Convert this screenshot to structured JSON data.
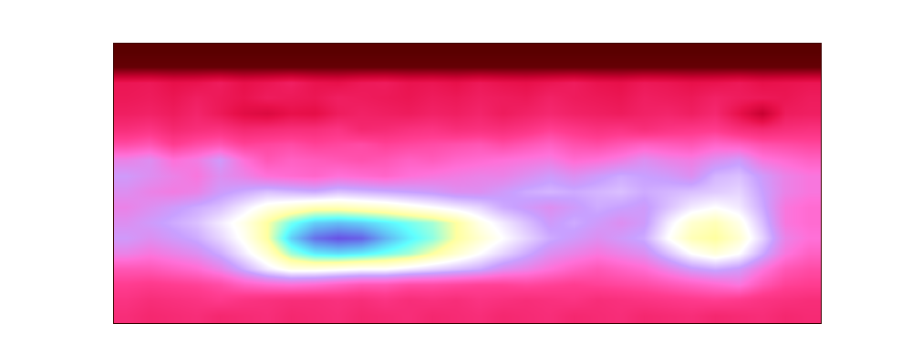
{
  "chart_data": {
    "type": "heatmap",
    "tick_labels": false,
    "zlim": [
      0,
      100
    ],
    "z": [
      [
        0,
        0,
        0,
        0,
        0,
        0,
        0,
        0,
        0,
        0,
        0,
        0,
        0,
        0,
        0,
        0,
        0,
        0,
        0,
        0,
        0,
        0,
        0,
        0,
        0,
        0,
        0,
        0,
        0,
        0
      ],
      [
        2,
        2,
        2,
        2,
        2,
        2,
        2,
        2,
        2,
        2,
        2,
        2,
        2,
        2,
        2,
        2,
        2,
        2,
        2,
        2,
        2,
        2,
        2,
        2,
        2,
        2,
        2,
        2,
        2,
        2
      ],
      [
        32,
        33,
        30,
        31,
        34,
        30,
        32,
        35,
        31,
        30,
        33,
        34,
        31,
        32,
        30,
        33,
        31,
        30,
        32,
        34,
        31,
        30,
        33,
        32,
        30,
        31,
        33,
        30,
        31,
        32
      ],
      [
        33,
        34,
        32,
        35,
        33,
        31,
        34,
        33,
        32,
        35,
        34,
        33,
        32,
        34,
        33,
        35,
        34,
        33,
        36,
        34,
        33,
        32,
        35,
        34,
        33,
        36,
        34,
        33,
        32,
        34
      ],
      [
        35,
        36,
        34,
        37,
        33,
        28,
        26,
        30,
        29,
        34,
        36,
        35,
        34,
        36,
        35,
        37,
        34,
        36,
        38,
        36,
        35,
        34,
        36,
        37,
        35,
        38,
        30,
        20,
        34,
        35
      ],
      [
        40,
        42,
        38,
        40,
        41,
        38,
        39,
        40,
        40,
        42,
        38,
        39,
        41,
        42,
        40,
        41,
        40,
        42,
        45,
        43,
        41,
        42,
        40,
        42,
        43,
        44,
        40,
        38,
        40,
        41
      ],
      [
        48,
        50,
        45,
        48,
        50,
        46,
        47,
        48,
        46,
        47,
        48,
        46,
        47,
        48,
        49,
        50,
        48,
        50,
        52,
        49,
        48,
        50,
        52,
        51,
        50,
        53,
        52,
        49,
        48,
        47
      ],
      [
        58,
        60,
        55,
        57,
        62,
        55,
        50,
        52,
        51,
        50,
        49,
        50,
        52,
        51,
        53,
        54,
        55,
        56,
        57,
        54,
        55,
        57,
        60,
        58,
        57,
        60,
        62,
        56,
        54,
        52
      ],
      [
        62,
        60,
        58,
        56,
        60,
        58,
        55,
        54,
        53,
        55,
        54,
        53,
        55,
        56,
        57,
        58,
        58,
        60,
        62,
        60,
        62,
        64,
        63,
        62,
        60,
        65,
        66,
        62,
        58,
        56
      ],
      [
        60,
        58,
        57,
        58,
        62,
        64,
        66,
        65,
        64,
        66,
        65,
        64,
        63,
        62,
        60,
        60,
        62,
        64,
        65,
        64,
        65,
        66,
        64,
        65,
        66,
        67,
        68,
        63,
        58,
        56
      ],
      [
        58,
        60,
        62,
        64,
        66,
        70,
        74,
        76,
        78,
        78,
        77,
        76,
        74,
        72,
        70,
        68,
        64,
        62,
        60,
        62,
        64,
        63,
        62,
        66,
        70,
        72,
        70,
        64,
        56,
        54
      ],
      [
        60,
        62,
        64,
        66,
        70,
        74,
        80,
        86,
        90,
        91,
        90,
        88,
        86,
        84,
        80,
        74,
        70,
        66,
        62,
        64,
        62,
        60,
        62,
        70,
        76,
        78,
        74,
        66,
        56,
        54
      ],
      [
        62,
        60,
        62,
        64,
        68,
        73,
        80,
        90,
        96,
        98,
        97,
        92,
        88,
        85,
        80,
        76,
        72,
        68,
        64,
        62,
        60,
        62,
        64,
        72,
        78,
        80,
        76,
        68,
        58,
        55
      ],
      [
        58,
        56,
        58,
        60,
        64,
        70,
        76,
        84,
        88,
        89,
        88,
        86,
        84,
        80,
        76,
        72,
        68,
        64,
        60,
        58,
        56,
        58,
        60,
        66,
        72,
        75,
        72,
        64,
        56,
        52
      ],
      [
        50,
        50,
        52,
        54,
        58,
        64,
        70,
        74,
        74,
        73,
        72,
        72,
        70,
        68,
        66,
        64,
        60,
        58,
        55,
        52,
        50,
        52,
        54,
        58,
        62,
        64,
        62,
        56,
        50,
        48
      ],
      [
        45,
        44,
        45,
        46,
        48,
        52,
        54,
        55,
        54,
        52,
        50,
        50,
        48,
        48,
        47,
        46,
        46,
        47,
        46,
        45,
        46,
        47,
        48,
        50,
        52,
        54,
        56,
        50,
        46,
        45
      ],
      [
        42,
        40,
        41,
        42,
        44,
        42,
        41,
        40,
        40,
        41,
        40,
        42,
        40,
        41,
        40,
        42,
        41,
        40,
        41,
        42,
        40,
        41,
        42,
        43,
        44,
        45,
        44,
        42,
        41,
        40
      ],
      [
        40,
        38,
        39,
        40,
        38,
        39,
        40,
        38,
        39,
        40,
        38,
        39,
        40,
        38,
        39,
        40,
        38,
        39,
        40,
        38,
        39,
        40,
        38,
        39,
        40,
        38,
        39,
        40,
        38,
        39
      ]
    ]
  }
}
